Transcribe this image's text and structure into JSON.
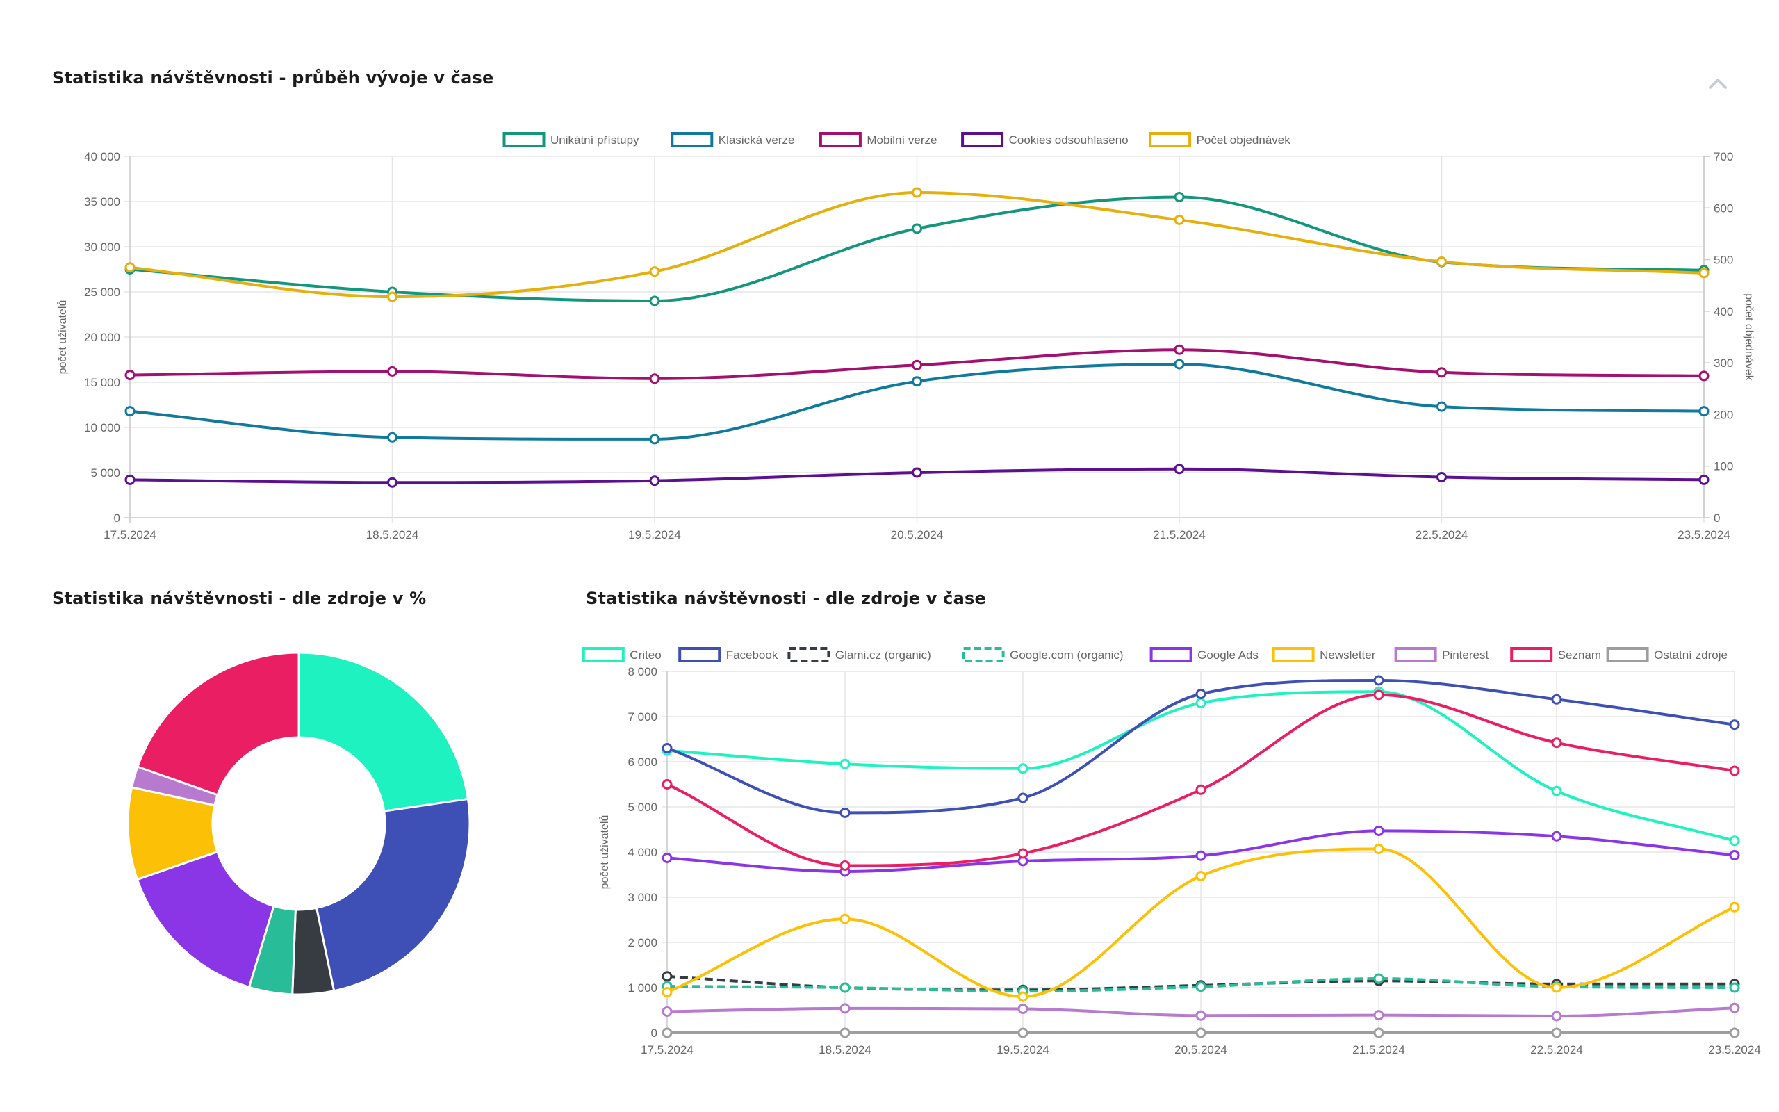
{
  "titles": {
    "trend": "Statistika návštěvnosti - průběh vývoje v čase",
    "pie": "Statistika návštěvnosti - dle zdroje v %",
    "sources": "Statistika návštěvnosti - dle zdroje v čase"
  },
  "icons": {
    "collapse": "chevron-up-icon"
  },
  "chart_data": [
    {
      "type": "line",
      "title": "Statistika návštěvnosti - průběh vývoje v čase",
      "categories": [
        "17.5.2024",
        "18.5.2024",
        "19.5.2024",
        "20.5.2024",
        "21.5.2024",
        "22.5.2024",
        "23.5.2024"
      ],
      "ylabel": "počet uživatelů",
      "ylabel_right": "počet objednávek",
      "ylim": [
        0,
        40000
      ],
      "yticks": [
        0,
        5000,
        10000,
        15000,
        20000,
        25000,
        30000,
        35000,
        40000
      ],
      "yticklabels": [
        "0",
        "5 000",
        "10 000",
        "15 000",
        "20 000",
        "25 000",
        "30 000",
        "35 000",
        "40 000"
      ],
      "ylim_right": [
        0,
        700
      ],
      "yticks_right": [
        0,
        100,
        200,
        300,
        400,
        500,
        600,
        700
      ],
      "yticklabels_right": [
        "0",
        "100",
        "200",
        "300",
        "400",
        "500",
        "600",
        "700"
      ],
      "grid": true,
      "legend": "top",
      "series": [
        {
          "name": "Unikátní přístupy",
          "color": "#13967d",
          "axis": "left",
          "values": [
            27500,
            25000,
            24000,
            32000,
            35500,
            28300,
            27400
          ]
        },
        {
          "name": "Klasická verze",
          "color": "#117a9c",
          "axis": "left",
          "values": [
            11800,
            8900,
            8700,
            15100,
            17000,
            12300,
            11800
          ]
        },
        {
          "name": "Mobilní verze",
          "color": "#a3106f",
          "axis": "left",
          "values": [
            15800,
            16200,
            15400,
            16900,
            18600,
            16100,
            15700
          ]
        },
        {
          "name": "Cookies odsouhlaseno",
          "color": "#5c0f91",
          "axis": "left",
          "values": [
            4200,
            3900,
            4100,
            5000,
            5400,
            4500,
            4200
          ]
        },
        {
          "name": "Počet objednávek",
          "color": "#e5b00e",
          "axis": "right",
          "values": [
            485,
            428,
            477,
            630,
            577,
            496,
            474
          ]
        }
      ]
    },
    {
      "type": "pie",
      "title": "Statistika návštěvnosti - dle zdroje v %",
      "donut": true,
      "labels": [
        "Criteo",
        "Facebook",
        "Glami.cz (organic)",
        "Google.com (organic)",
        "Google Ads",
        "Newsletter",
        "Pinterest",
        "Seznam",
        "Ostatní zdroje"
      ],
      "values": [
        22.7,
        24.0,
        3.9,
        4.1,
        15.0,
        8.7,
        2.0,
        19.6,
        0.0
      ],
      "colors": [
        "#1ef2c0",
        "#3e4fb5",
        "#363c42",
        "#28bc98",
        "#8a36e6",
        "#fcc107",
        "#b77acf",
        "#e91e63",
        "#9e9e9e"
      ]
    },
    {
      "type": "line",
      "title": "Statistika návštěvnosti - dle zdroje v čase",
      "categories": [
        "17.5.2024",
        "18.5.2024",
        "19.5.2024",
        "20.5.2024",
        "21.5.2024",
        "22.5.2024",
        "23.5.2024"
      ],
      "ylabel": "počet uživatelů",
      "ylim": [
        0,
        8000
      ],
      "yticks": [
        0,
        1000,
        2000,
        3000,
        4000,
        5000,
        6000,
        7000,
        8000
      ],
      "yticklabels": [
        "0",
        "1 000",
        "2 000",
        "3 000",
        "4 000",
        "5 000",
        "6 000",
        "7 000",
        "8 000"
      ],
      "grid": true,
      "legend": "top",
      "series": [
        {
          "name": "Criteo",
          "color": "#1ef2c0",
          "dashed": false,
          "values": [
            6250,
            5950,
            5850,
            7300,
            7550,
            5350,
            4250
          ]
        },
        {
          "name": "Facebook",
          "color": "#3e4fb5",
          "dashed": false,
          "values": [
            6300,
            4870,
            5200,
            7500,
            7800,
            7380,
            6820
          ]
        },
        {
          "name": "Glami.cz (organic)",
          "color": "#363c42",
          "dashed": true,
          "values": [
            1250,
            1000,
            950,
            1050,
            1150,
            1080,
            1080
          ]
        },
        {
          "name": "Google.com (organic)",
          "color": "#28bc98",
          "dashed": true,
          "values": [
            1030,
            1000,
            920,
            1020,
            1200,
            1020,
            1000
          ]
        },
        {
          "name": "Google Ads",
          "color": "#8a36e6",
          "dashed": false,
          "values": [
            3870,
            3570,
            3800,
            3920,
            4470,
            4350,
            3930
          ]
        },
        {
          "name": "Newsletter",
          "color": "#fcc107",
          "dashed": false,
          "values": [
            900,
            2520,
            800,
            3470,
            4070,
            1000,
            2780
          ]
        },
        {
          "name": "Pinterest",
          "color": "#b77acf",
          "dashed": false,
          "values": [
            470,
            540,
            530,
            380,
            390,
            370,
            550
          ]
        },
        {
          "name": "Seznam",
          "color": "#e91e63",
          "dashed": false,
          "values": [
            5500,
            3700,
            3970,
            5380,
            7480,
            6420,
            5800
          ]
        },
        {
          "name": "Ostatní zdroje",
          "color": "#9e9e9e",
          "dashed": false,
          "values": [
            0,
            0,
            0,
            0,
            0,
            0,
            0
          ]
        }
      ]
    }
  ]
}
